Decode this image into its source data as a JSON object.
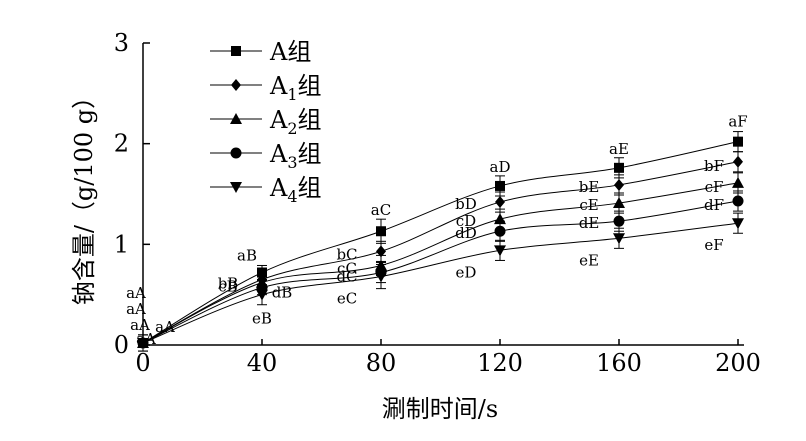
{
  "chart_data": {
    "type": "line",
    "title": "",
    "xlabel": "涮制时间/s",
    "ylabel": "钠含量/（g/100 g）",
    "xlim": [
      0,
      200
    ],
    "ylim": [
      0,
      3
    ],
    "x_ticks": [
      "0",
      "40",
      "80",
      "120",
      "160",
      "200"
    ],
    "y_ticks": [
      "0",
      "1",
      "2",
      "3"
    ],
    "grid": false,
    "legend_position": "top-left",
    "x": [
      0,
      40,
      80,
      120,
      160,
      200
    ],
    "series": [
      {
        "name": "A组",
        "marker": "square",
        "values": [
          0.02,
          0.72,
          1.13,
          1.58,
          1.76,
          2.02
        ],
        "errors": [
          0.08,
          0.07,
          0.12,
          0.1,
          0.1,
          0.1
        ],
        "labels": [
          "aA",
          "aB",
          "aC",
          "aD",
          "aE",
          "aF"
        ]
      },
      {
        "name": "A1组",
        "name_base": "A",
        "name_sub": "1",
        "name_suffix": "组",
        "marker": "diamond",
        "values": [
          0.02,
          0.65,
          0.93,
          1.42,
          1.59,
          1.82
        ],
        "errors": [
          0.08,
          0.07,
          0.1,
          0.1,
          0.1,
          0.1
        ],
        "labels": [
          "aA",
          "bB",
          "bC",
          "bD",
          "bE",
          "bF"
        ]
      },
      {
        "name": "A2组",
        "name_base": "A",
        "name_sub": "2",
        "name_suffix": "组",
        "marker": "triangle-up",
        "values": [
          0.02,
          0.62,
          0.79,
          1.25,
          1.41,
          1.61
        ],
        "errors": [
          0.08,
          0.07,
          0.1,
          0.1,
          0.1,
          0.1
        ],
        "labels": [
          "aA",
          "cB",
          "cC",
          "cD",
          "cE",
          "cF"
        ]
      },
      {
        "name": "A3组",
        "name_base": "A",
        "name_sub": "3",
        "name_suffix": "组",
        "marker": "circle",
        "values": [
          0.02,
          0.57,
          0.72,
          1.13,
          1.23,
          1.43
        ],
        "errors": [
          0.08,
          0.07,
          0.1,
          0.1,
          0.1,
          0.1
        ],
        "labels": [
          "aA",
          "dB",
          "dC",
          "dD",
          "dE",
          "dF"
        ]
      },
      {
        "name": "A4组",
        "name_base": "A",
        "name_sub": "4",
        "name_suffix": "组",
        "marker": "triangle-down",
        "values": [
          0.02,
          0.5,
          0.68,
          0.94,
          1.06,
          1.21
        ],
        "errors": [
          0.08,
          0.1,
          0.12,
          0.1,
          0.1,
          0.1
        ],
        "labels": [
          "aA",
          "eB",
          "eC",
          "eD",
          "eE",
          "eF"
        ]
      }
    ]
  }
}
